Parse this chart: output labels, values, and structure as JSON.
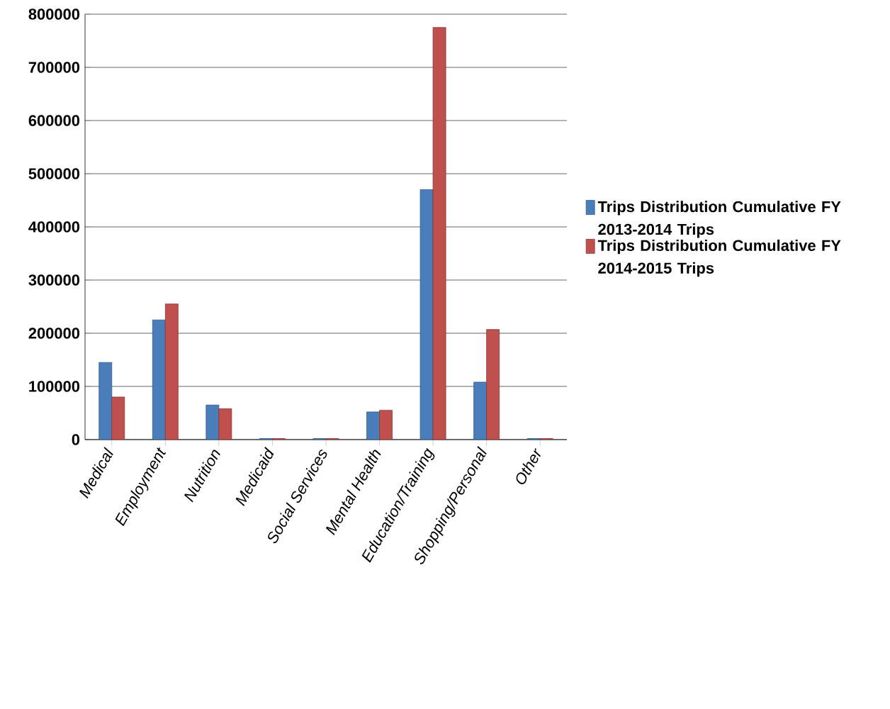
{
  "chart_data": {
    "type": "bar",
    "categories": [
      "Medical",
      "Employment",
      "Nutrition",
      "Medicaid",
      "Social Services",
      "Mental Health",
      "Education/Training",
      "Shopping/Personal",
      "Other"
    ],
    "series": [
      {
        "name": "Trips Distribution Cumulative FY 2013-2014 Trips",
        "color": "#4a7ebb",
        "values": [
          145000,
          225000,
          65000,
          2000,
          2000,
          52000,
          470000,
          108000,
          2000
        ]
      },
      {
        "name": "Trips Distribution Cumulative FY 2014-2015 Trips",
        "color": "#c0504d",
        "values": [
          80000,
          255000,
          58000,
          2000,
          2000,
          55000,
          775000,
          207000,
          2000
        ]
      }
    ],
    "ylim": [
      0,
      800000
    ],
    "yticks": [
      0,
      100000,
      200000,
      300000,
      400000,
      500000,
      600000,
      700000,
      800000
    ],
    "grid": "y",
    "legend": "right"
  }
}
